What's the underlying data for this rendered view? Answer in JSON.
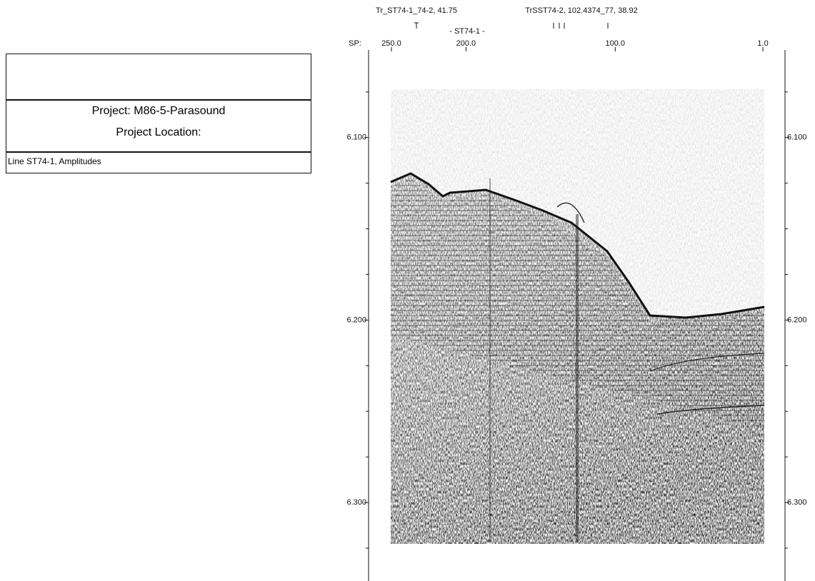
{
  "header_box": {
    "project": "Project: M86-5-Parasound",
    "location": "Project Location:",
    "line": "Line ST74-1, Amplitudes"
  },
  "profile": {
    "x_axis_label": "SP:",
    "xlim": [
      265.3,
      -13.8
    ],
    "xticks": [
      {
        "value": 250,
        "label": "250.0"
      },
      {
        "value": 200,
        "label": "200.0"
      },
      {
        "value": 100,
        "label": "100.0"
      },
      {
        "value": 1,
        "label": "1.0"
      }
    ],
    "ylim": [
      6.052,
      6.343
    ],
    "yticks": [
      {
        "value": 6.1,
        "label": "6.100"
      },
      {
        "value": 6.2,
        "label": "6.200"
      },
      {
        "value": 6.3,
        "label": "6.300"
      }
    ],
    "minor_yticks": [
      6.075,
      6.125,
      6.15,
      6.175,
      6.225,
      6.25,
      6.275,
      6.325
    ],
    "markers": [
      "Tr_ST74-1_74-2, 41.75",
      "TrSST74-2, 102.4374_77, 38.92",
      "- ST74-1 -"
    ]
  }
}
